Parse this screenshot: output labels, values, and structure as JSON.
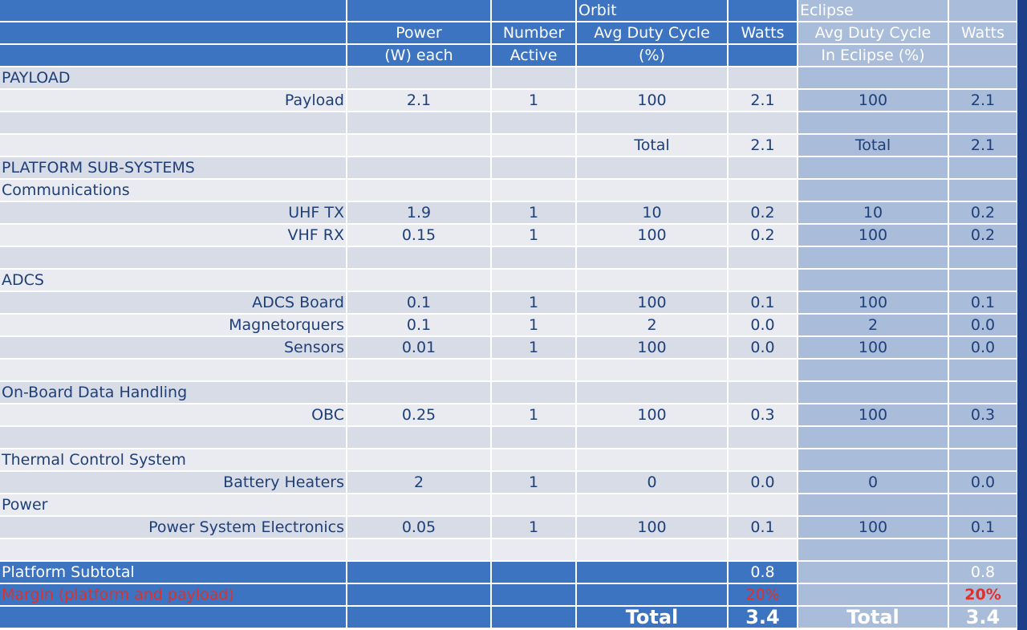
{
  "header": {
    "orbit": "Orbit",
    "eclipse": "Eclipse",
    "power_l1": "Power",
    "power_l2": "(W) each",
    "number_l1": "Number",
    "number_l2": "Active",
    "duty_l1": "Avg Duty Cycle",
    "duty_l2": "(%)",
    "watts": "Watts",
    "ecl_duty_l1": "Avg Duty Cycle",
    "ecl_duty_l2": "In Eclipse (%)",
    "ecl_watts": "Watts"
  },
  "sections": {
    "payload": "PAYLOAD",
    "platform": "PLATFORM SUB-SYSTEMS",
    "communications": "Communications",
    "adcs": "ADCS",
    "obdh": "On-Board Data Handling",
    "thermal": "Thermal Control System",
    "power": "Power"
  },
  "rows": {
    "payload": {
      "name": "Payload",
      "power": "2.1",
      "number": "1",
      "duty": "100",
      "watts": "2.1",
      "ecl_duty": "100",
      "ecl_watts": "2.1"
    },
    "payload_total": {
      "label": "Total",
      "watts": "2.1",
      "ecl_label": "Total",
      "ecl_watts": "2.1"
    },
    "uhf": {
      "name": "UHF TX",
      "power": "1.9",
      "number": "1",
      "duty": "10",
      "watts": "0.2",
      "ecl_duty": "10",
      "ecl_watts": "0.2"
    },
    "vhf": {
      "name": "VHF RX",
      "power": "0.15",
      "number": "1",
      "duty": "100",
      "watts": "0.2",
      "ecl_duty": "100",
      "ecl_watts": "0.2"
    },
    "adcs_board": {
      "name": "ADCS Board",
      "power": "0.1",
      "number": "1",
      "duty": "100",
      "watts": "0.1",
      "ecl_duty": "100",
      "ecl_watts": "0.1"
    },
    "magnetorquers": {
      "name": "Magnetorquers",
      "power": "0.1",
      "number": "1",
      "duty": "2",
      "watts": "0.0",
      "ecl_duty": "2",
      "ecl_watts": "0.0"
    },
    "sensors": {
      "name": "Sensors",
      "power": "0.01",
      "number": "1",
      "duty": "100",
      "watts": "0.0",
      "ecl_duty": "100",
      "ecl_watts": "0.0"
    },
    "obc": {
      "name": "OBC",
      "power": "0.25",
      "number": "1",
      "duty": "100",
      "watts": "0.3",
      "ecl_duty": "100",
      "ecl_watts": "0.3"
    },
    "heaters": {
      "name": "Battery Heaters",
      "power": "2",
      "number": "1",
      "duty": "0",
      "watts": "0.0",
      "ecl_duty": "0",
      "ecl_watts": "0.0"
    },
    "pse": {
      "name": "Power System Electronics",
      "power": "0.05",
      "number": "1",
      "duty": "100",
      "watts": "0.1",
      "ecl_duty": "100",
      "ecl_watts": "0.1"
    }
  },
  "summary": {
    "subtotal_label": "Platform Subtotal",
    "subtotal_watts": "0.8",
    "subtotal_ecl_watts": "0.8",
    "margin_label": "Margin (platform and payload)",
    "margin_pct": "20%",
    "margin_ecl_pct": "20%",
    "total_label": "Total",
    "total_watts": "3.4",
    "total_ecl_label": "Total",
    "total_ecl_watts": "3.4"
  },
  "colors": {
    "header_blue": "#3c74c2",
    "eclipse_blue": "#a9bcd9",
    "text": "#1f3f78",
    "margin_red": "#e0302a"
  }
}
